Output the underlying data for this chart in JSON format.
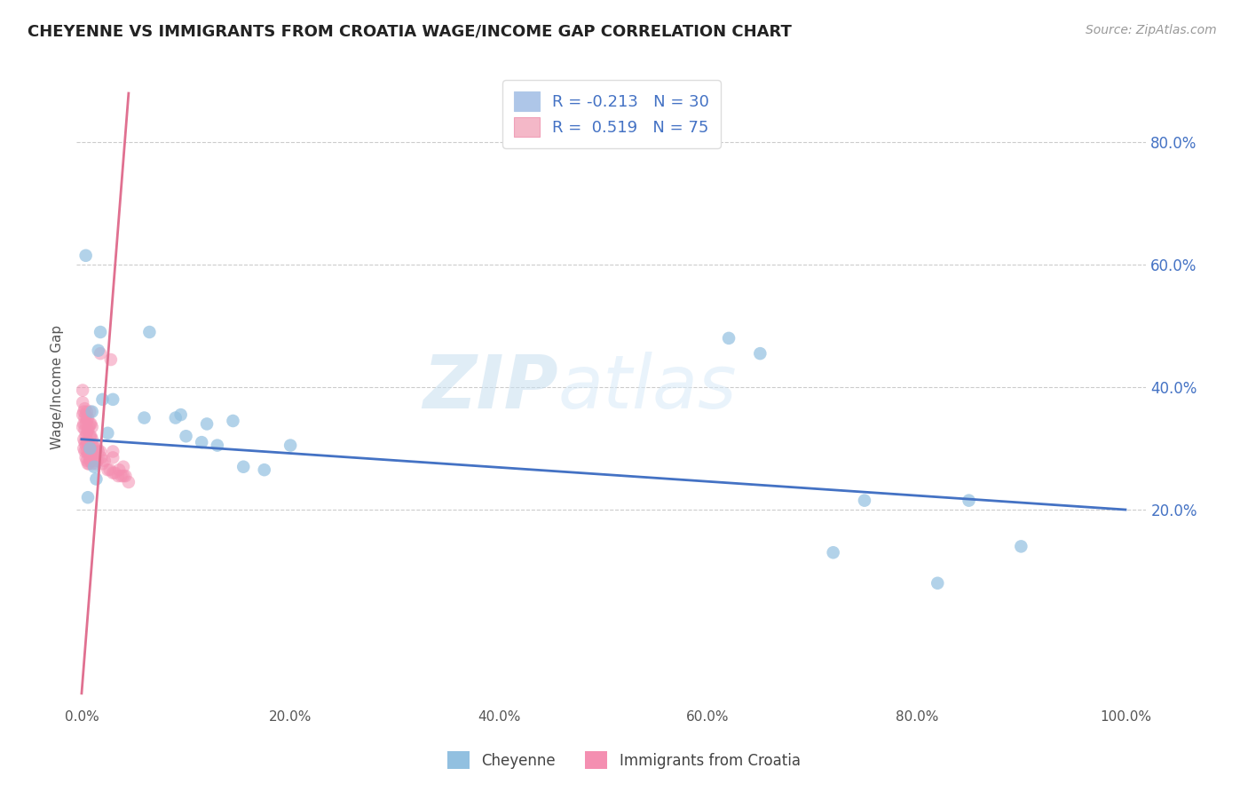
{
  "title": "CHEYENNE VS IMMIGRANTS FROM CROATIA WAGE/INCOME GAP CORRELATION CHART",
  "source": "Source: ZipAtlas.com",
  "ylabel": "Wage/Income Gap",
  "xlim": [
    -0.005,
    1.02
  ],
  "ylim": [
    -0.12,
    0.92
  ],
  "xtick_values": [
    0.0,
    0.2,
    0.4,
    0.6,
    0.8,
    1.0
  ],
  "xtick_labels": [
    "0.0%",
    "20.0%",
    "40.0%",
    "60.0%",
    "80.0%",
    "100.0%"
  ],
  "ytick_values": [
    0.2,
    0.4,
    0.6,
    0.8
  ],
  "ytick_labels": [
    "20.0%",
    "40.0%",
    "60.0%",
    "80.0%"
  ],
  "legend_r_color": "#4472c4",
  "legend_entries": [
    {
      "label_r": "R = -0.213",
      "label_n": "N = 30",
      "color": "#aec6e8"
    },
    {
      "label_r": "R =  0.519",
      "label_n": "N = 75",
      "color": "#f4b8c8"
    }
  ],
  "watermark": "ZIPatlas",
  "blue_color": "#92c0e0",
  "pink_color": "#f48fb1",
  "blue_line_color": "#4472c4",
  "pink_line_color": "#e07090",
  "cheyenne_x": [
    0.004,
    0.006,
    0.008,
    0.01,
    0.012,
    0.014,
    0.016,
    0.018,
    0.02,
    0.025,
    0.03,
    0.06,
    0.065,
    0.09,
    0.095,
    0.1,
    0.115,
    0.12,
    0.13,
    0.145,
    0.155,
    0.175,
    0.2,
    0.62,
    0.65,
    0.72,
    0.75,
    0.82,
    0.85,
    0.9
  ],
  "cheyenne_y": [
    0.615,
    0.22,
    0.3,
    0.36,
    0.27,
    0.25,
    0.46,
    0.49,
    0.38,
    0.325,
    0.38,
    0.35,
    0.49,
    0.35,
    0.355,
    0.32,
    0.31,
    0.34,
    0.305,
    0.345,
    0.27,
    0.265,
    0.305,
    0.48,
    0.455,
    0.13,
    0.215,
    0.08,
    0.215,
    0.14
  ],
  "croatia_x": [
    0.001,
    0.001,
    0.001,
    0.001,
    0.002,
    0.002,
    0.002,
    0.002,
    0.003,
    0.003,
    0.003,
    0.003,
    0.003,
    0.004,
    0.004,
    0.004,
    0.004,
    0.004,
    0.005,
    0.005,
    0.005,
    0.005,
    0.005,
    0.005,
    0.006,
    0.006,
    0.006,
    0.006,
    0.006,
    0.007,
    0.007,
    0.007,
    0.007,
    0.008,
    0.008,
    0.008,
    0.008,
    0.008,
    0.009,
    0.009,
    0.009,
    0.009,
    0.01,
    0.01,
    0.01,
    0.01,
    0.011,
    0.011,
    0.012,
    0.012,
    0.013,
    0.013,
    0.014,
    0.015,
    0.015,
    0.016,
    0.018,
    0.019,
    0.02,
    0.022,
    0.025,
    0.027,
    0.03,
    0.03,
    0.03,
    0.032,
    0.035,
    0.036,
    0.038,
    0.04,
    0.04,
    0.042,
    0.045,
    0.018,
    0.028
  ],
  "croatia_y": [
    0.335,
    0.355,
    0.375,
    0.395,
    0.3,
    0.315,
    0.34,
    0.36,
    0.295,
    0.31,
    0.33,
    0.35,
    0.365,
    0.285,
    0.305,
    0.32,
    0.34,
    0.355,
    0.28,
    0.295,
    0.31,
    0.325,
    0.345,
    0.36,
    0.275,
    0.29,
    0.31,
    0.33,
    0.35,
    0.275,
    0.292,
    0.31,
    0.335,
    0.28,
    0.3,
    0.32,
    0.34,
    0.36,
    0.28,
    0.298,
    0.32,
    0.34,
    0.275,
    0.295,
    0.315,
    0.335,
    0.285,
    0.305,
    0.28,
    0.3,
    0.285,
    0.295,
    0.275,
    0.28,
    0.3,
    0.295,
    0.295,
    0.285,
    0.275,
    0.28,
    0.265,
    0.265,
    0.26,
    0.285,
    0.295,
    0.26,
    0.255,
    0.265,
    0.255,
    0.255,
    0.27,
    0.255,
    0.245,
    0.455,
    0.445
  ],
  "blue_line_x": [
    0.0,
    1.0
  ],
  "blue_line_y": [
    0.315,
    0.2
  ],
  "pink_line_x": [
    0.0,
    0.045
  ],
  "pink_line_y": [
    -0.1,
    0.88
  ]
}
